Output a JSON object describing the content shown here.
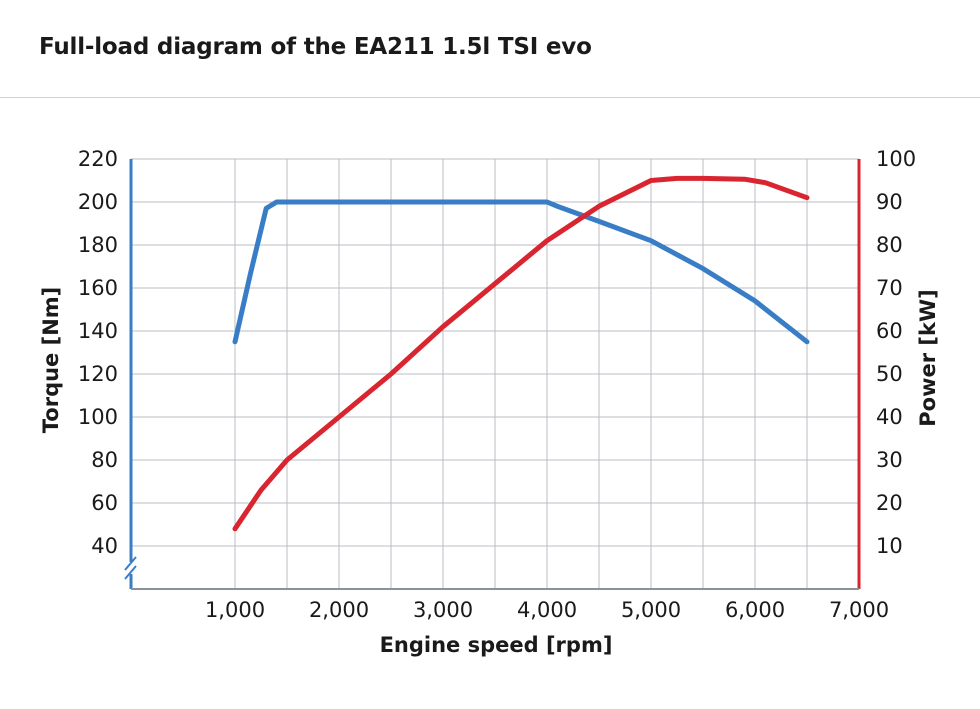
{
  "title": "Full-load diagram of the EA211 1.5l TSI evo",
  "chart_data": {
    "type": "line",
    "title": "Full-load diagram of the EA211 1.5l TSI evo",
    "xlabel": "Engine speed [rpm]",
    "ylabel_left": "Torque [Nm]",
    "ylabel_right": "Power [kW]",
    "xlim": [
      0,
      7000
    ],
    "ylim_left": [
      20,
      220
    ],
    "ylim_right": [
      0,
      100
    ],
    "x_ticks": [
      1000,
      2000,
      3000,
      4000,
      5000,
      6000,
      7000
    ],
    "x_tick_labels": [
      "1,000",
      "2,000",
      "3,000",
      "4,000",
      "5,000",
      "6,000",
      "7,000"
    ],
    "y_left_ticks": [
      40,
      60,
      80,
      100,
      120,
      140,
      160,
      180,
      200,
      220
    ],
    "y_left_tick_labels": [
      "40",
      "60",
      "80",
      "100",
      "120",
      "140",
      "160",
      "180",
      "200",
      "220"
    ],
    "y_right_ticks": [
      10,
      20,
      30,
      40,
      50,
      60,
      70,
      80,
      90,
      100
    ],
    "y_right_tick_labels": [
      "10",
      "20",
      "30",
      "40",
      "50",
      "60",
      "70",
      "80",
      "90",
      "100"
    ],
    "grid": true,
    "axis_break_left": true,
    "colors": {
      "torque": "#3a7dc7",
      "power": "#d9252f",
      "grid": "#b8bec4",
      "text": "#1a1a1a"
    },
    "series": [
      {
        "key": "torque",
        "axis": "left",
        "x": [
          1000,
          1150,
          1300,
          1400,
          1500,
          2000,
          3000,
          4000,
          4100,
          4500,
          5000,
          5500,
          6000,
          6500
        ],
        "values": [
          135,
          167,
          197,
          200,
          200,
          200,
          200,
          200,
          198,
          191,
          182,
          169,
          154,
          135
        ]
      },
      {
        "key": "power",
        "axis": "right",
        "x": [
          1000,
          1250,
          1500,
          2000,
          2500,
          3000,
          3500,
          4000,
          4500,
          5000,
          5250,
          5500,
          5900,
          6100,
          6500
        ],
        "values": [
          14,
          23,
          30,
          40,
          50,
          61,
          71,
          81,
          89,
          95,
          95.5,
          95.5,
          95.3,
          94.5,
          91
        ]
      }
    ]
  }
}
